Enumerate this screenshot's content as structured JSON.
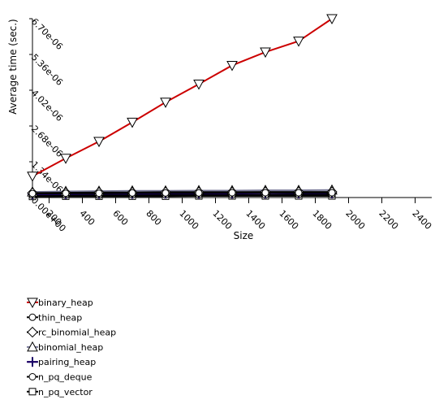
{
  "chart_data": {
    "type": "line",
    "title": "",
    "xlabel": "Size",
    "ylabel": "Average time (sec.)",
    "xlim": [
      100,
      2500
    ],
    "ylim": [
      0,
      6.7e-06
    ],
    "x_ticks": [
      200,
      400,
      600,
      800,
      1000,
      1200,
      1400,
      1600,
      1800,
      2000,
      2200,
      2400
    ],
    "x_tick_labels": [
      "200",
      "400",
      "600",
      "800",
      "1000",
      "1200",
      "1400",
      "1600",
      "1800",
      "2000",
      "2200",
      "2400"
    ],
    "y_ticks": [
      0,
      1.34e-06,
      2.68e-06,
      4.02e-06,
      5.36e-06,
      6.7e-06
    ],
    "y_tick_labels": [
      "0.00e+00",
      "1.34e-06",
      "2.68e-06",
      "4.02e-06",
      "5.36e-06",
      "6.70e-06"
    ],
    "x": [
      100,
      300,
      500,
      700,
      900,
      1100,
      1300,
      1500,
      1700,
      1900
    ],
    "series": [
      {
        "name": "binary_heap",
        "color": "#cc0000",
        "marker": "triangle-down",
        "values": [
          8e-07,
          1.47e-06,
          2.1e-06,
          2.82e-06,
          3.57e-06,
          4.25e-06,
          4.95e-06,
          5.45e-06,
          5.86e-06,
          6.7e-06
        ]
      },
      {
        "name": "thin_heap",
        "color": "#000000",
        "marker": "circle",
        "values": [
          1.5e-07,
          1.6e-07,
          1.6e-07,
          1.7e-07,
          1.7e-07,
          1.7e-07,
          1.8e-07,
          1.8e-07,
          1.8e-07,
          1.8e-07
        ]
      },
      {
        "name": "rc_binomial_heap",
        "color": "#000000",
        "marker": "diamond",
        "values": [
          1.7e-07,
          1.8e-07,
          1.9e-07,
          1.9e-07,
          2e-07,
          2e-07,
          2e-07,
          2.1e-07,
          2.1e-07,
          2.1e-07
        ]
      },
      {
        "name": "binomial_heap",
        "color": "#7a7a9a",
        "marker": "triangle-up",
        "values": [
          2.1e-07,
          2.3e-07,
          2.4e-07,
          2.5e-07,
          2.5e-07,
          2.6e-07,
          2.6e-07,
          2.7e-07,
          2.7e-07,
          2.8e-07
        ]
      },
      {
        "name": "pairing_heap",
        "color": "#1a0066",
        "marker": "cross",
        "values": [
          1.2e-07,
          1.3e-07,
          1.4e-07,
          1.4e-07,
          1.5e-07,
          1.5e-07,
          1.5e-07,
          1.6e-07,
          1.6e-07,
          1.6e-07
        ]
      },
      {
        "name": "n_pq_deque",
        "color": "#000000",
        "marker": "circle",
        "values": [
          8e-08,
          9e-08,
          9e-08,
          1e-07,
          1e-07,
          1e-07,
          1e-07,
          1e-07,
          1.1e-07,
          1.1e-07
        ]
      },
      {
        "name": "n_pq_vector",
        "color": "#000000",
        "marker": "square",
        "values": [
          4e-08,
          5e-08,
          5e-08,
          5e-08,
          5e-08,
          6e-08,
          6e-08,
          6e-08,
          6e-08,
          6e-08
        ]
      }
    ],
    "grid": false,
    "legend_position": "bottom-left"
  }
}
